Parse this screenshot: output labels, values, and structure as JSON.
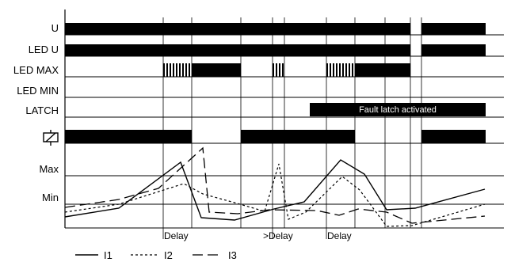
{
  "rows": [
    {
      "key": "u",
      "label": "U"
    },
    {
      "key": "led_u",
      "label": "LED U"
    },
    {
      "key": "led_max",
      "label": "LED MAX"
    },
    {
      "key": "led_min",
      "label": "LED MIN"
    },
    {
      "key": "latch",
      "label": "LATCH"
    },
    {
      "key": "relay",
      "label": ""
    }
  ],
  "relay_icon": "relay-coil-icon",
  "latch_text": "Fault latch activated",
  "levels": {
    "max": "Max",
    "min": "Min"
  },
  "delay_labels": [
    "Delay",
    ">Delay",
    "Delay"
  ],
  "legend": [
    {
      "name": "I1",
      "style": "solid"
    },
    {
      "name": "I2",
      "style": "dotted"
    },
    {
      "name": "I3",
      "style": "dashed"
    }
  ]
}
